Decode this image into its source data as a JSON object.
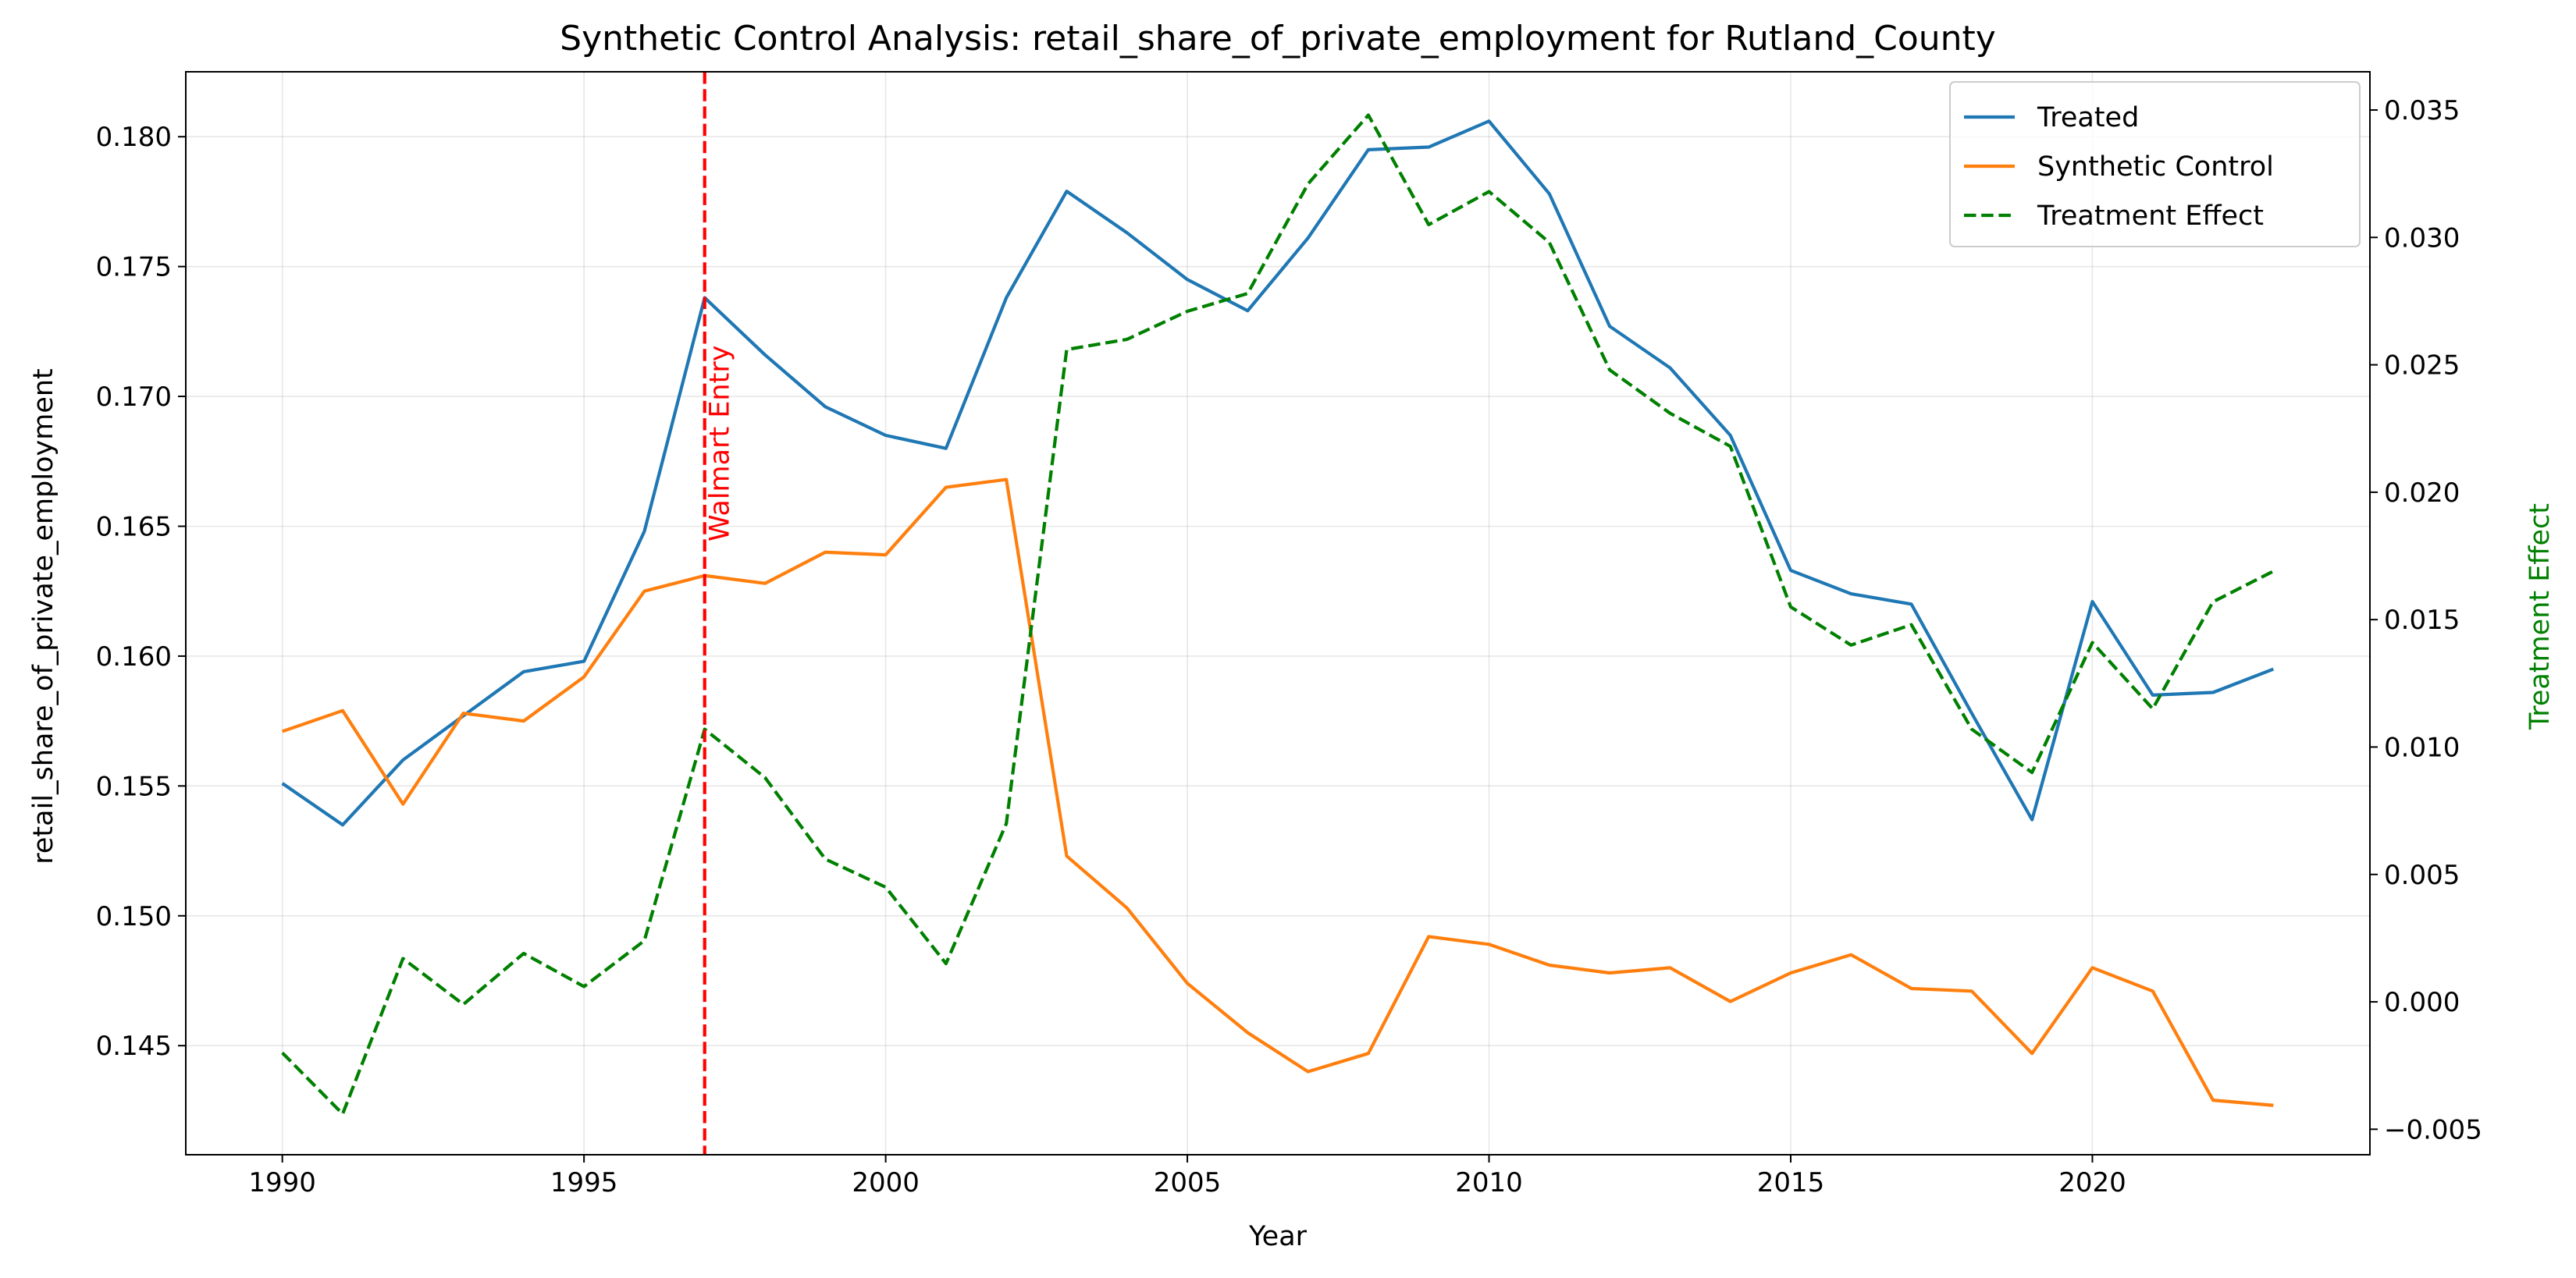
{
  "chart_data": {
    "type": "line",
    "title": "Synthetic Control Analysis: retail_share_of_private_employment for Rutland_County",
    "xlabel": "Year",
    "ylabel": "retail_share_of_private_employment",
    "y2label": "Treatment Effect",
    "xlim": [
      1988.4,
      2024.6
    ],
    "ylim": [
      0.1408,
      0.1825
    ],
    "y2lim": [
      -0.006,
      0.0365
    ],
    "x_ticks": [
      1990,
      1995,
      2000,
      2005,
      2010,
      2015,
      2020
    ],
    "y_ticks": [
      0.145,
      0.15,
      0.155,
      0.16,
      0.165,
      0.17,
      0.175,
      0.18
    ],
    "y_tick_labels": [
      "0.145",
      "0.150",
      "0.155",
      "0.160",
      "0.165",
      "0.170",
      "0.175",
      "0.180"
    ],
    "y2_ticks": [
      -0.005,
      0.0,
      0.005,
      0.01,
      0.015,
      0.02,
      0.025,
      0.03,
      0.035
    ],
    "y2_tick_labels": [
      "−0.005",
      "0.000",
      "0.005",
      "0.010",
      "0.015",
      "0.020",
      "0.025",
      "0.030",
      "0.035"
    ],
    "grid": true,
    "legend_position": "top-right",
    "x": [
      1990,
      1991,
      1992,
      1993,
      1994,
      1995,
      1996,
      1997,
      1998,
      1999,
      2000,
      2001,
      2002,
      2003,
      2004,
      2005,
      2006,
      2007,
      2008,
      2009,
      2010,
      2011,
      2012,
      2013,
      2014,
      2015,
      2016,
      2017,
      2018,
      2019,
      2020,
      2021,
      2022,
      2023
    ],
    "series": [
      {
        "name": "Treated",
        "axis": "left",
        "style": "solid",
        "color": "#1f77b4",
        "values": [
          0.1551,
          0.1535,
          0.156,
          0.1577,
          0.1594,
          0.1598,
          0.1648,
          0.1738,
          0.1716,
          0.1696,
          0.1685,
          0.168,
          0.1738,
          0.1779,
          0.1763,
          0.1745,
          0.1733,
          0.1761,
          0.1795,
          0.1796,
          0.1806,
          0.1778,
          0.1727,
          0.1711,
          0.1685,
          0.1633,
          0.1624,
          0.162,
          0.1578,
          0.1537,
          0.1621,
          0.1585,
          0.1586,
          0.1595
        ]
      },
      {
        "name": "Synthetic Control",
        "axis": "left",
        "style": "solid",
        "color": "#ff7f0e",
        "values": [
          0.1571,
          0.1579,
          0.1543,
          0.1578,
          0.1575,
          0.1592,
          0.1625,
          0.1631,
          0.1628,
          0.164,
          0.1639,
          0.1665,
          0.1668,
          0.1523,
          0.1503,
          0.1474,
          0.1455,
          0.144,
          0.1447,
          0.1492,
          0.1489,
          0.1481,
          0.1478,
          0.148,
          0.1467,
          0.1478,
          0.1485,
          0.1472,
          0.1471,
          0.1447,
          0.148,
          0.1471,
          0.1429,
          0.1427
        ]
      },
      {
        "name": "Treatment Effect",
        "axis": "right",
        "style": "dashed",
        "color": "#008000",
        "values": [
          -0.002,
          -0.0044,
          0.0017,
          -0.0001,
          0.0019,
          0.0006,
          0.0024,
          0.0107,
          0.0088,
          0.0056,
          0.0045,
          0.0015,
          0.007,
          0.0256,
          0.026,
          0.0271,
          0.0278,
          0.0321,
          0.0348,
          0.0305,
          0.0318,
          0.0298,
          0.0248,
          0.0231,
          0.0218,
          0.0155,
          0.014,
          0.0148,
          0.0107,
          0.009,
          0.0141,
          0.0115,
          0.0157,
          0.0169
        ]
      }
    ],
    "annotation": {
      "text": "Walmart Entry",
      "x": 1997,
      "color": "#ff0000",
      "style": "dashed"
    }
  }
}
